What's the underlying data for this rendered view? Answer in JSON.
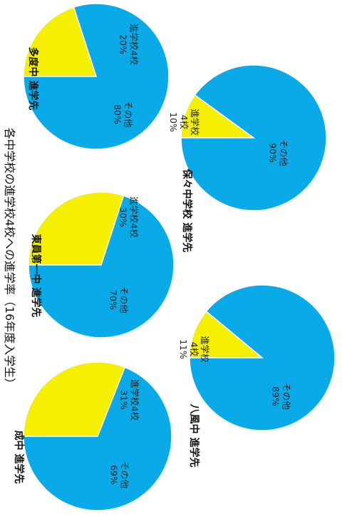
{
  "title": "各中学校の進学校4校への進学率（16年度入学生）",
  "colors": {
    "other": "#0aaae8",
    "highlight": "#f5f000"
  },
  "chart_data": [
    {
      "type": "pie",
      "title": "多度中 進学先",
      "slices": [
        {
          "label": "進学校4校",
          "value": 20,
          "display": "20%"
        },
        {
          "label": "その他",
          "value": 80,
          "display": "80%"
        }
      ]
    },
    {
      "type": "pie",
      "title": "東員第一中 進学先",
      "slices": [
        {
          "label": "進学校4校",
          "value": 30,
          "display": "30%"
        },
        {
          "label": "その他",
          "value": 70,
          "display": "70%"
        }
      ]
    },
    {
      "type": "pie",
      "title": "成中 進学先",
      "slices": [
        {
          "label": "進学校4校",
          "value": 31,
          "display": "31%"
        },
        {
          "label": "その他",
          "value": 69,
          "display": "69%"
        }
      ]
    },
    {
      "type": "pie",
      "title": "保々中学校 進学先",
      "slices": [
        {
          "label": "進学校4校",
          "value": 10,
          "display": "10%"
        },
        {
          "label": "その他",
          "value": 90,
          "display": "90%"
        }
      ]
    },
    {
      "type": "pie",
      "title": "八風中 進学先",
      "slices": [
        {
          "label": "進学校4校",
          "value": 11,
          "display": "11%"
        },
        {
          "label": "その他",
          "value": 89,
          "display": "89%"
        }
      ]
    }
  ]
}
